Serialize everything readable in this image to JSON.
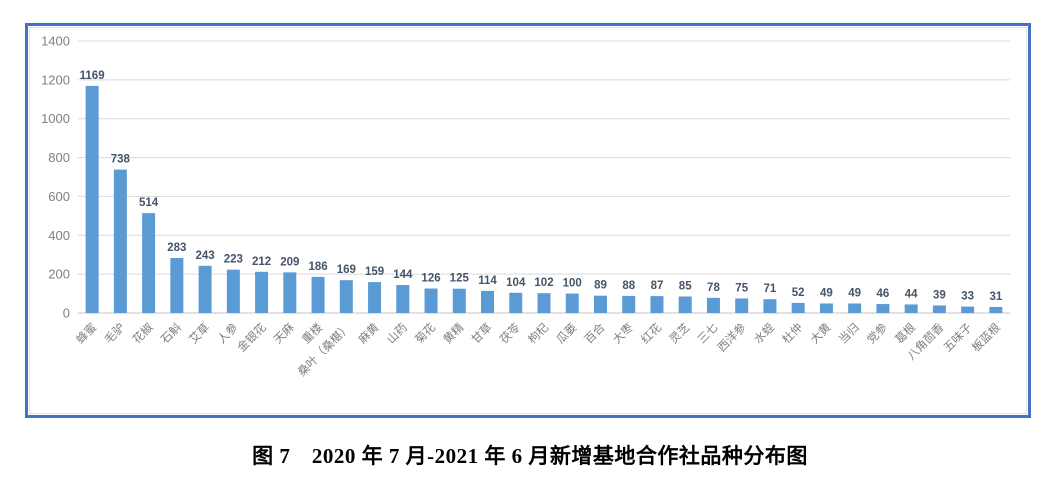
{
  "figure": {
    "caption": "图 7　2020 年 7 月-2021 年 6 月新增基地合作社品种分布图"
  },
  "chart_data": {
    "type": "bar",
    "title": "",
    "xlabel": "",
    "ylabel": "",
    "categories": [
      "蜂蜜",
      "毛驴",
      "花椒",
      "石斛",
      "艾草",
      "人参",
      "金银花",
      "天麻",
      "重楼",
      "桑叶（桑椹）",
      "麻黄",
      "山药",
      "菊花",
      "黄精",
      "甘草",
      "茯苓",
      "枸杞",
      "瓜蒌",
      "百合",
      "大枣",
      "红花",
      "灵芝",
      "三七",
      "西洋参",
      "水蛭",
      "杜仲",
      "大黄",
      "当归",
      "党参",
      "葛根",
      "八角茴香",
      "五味子",
      "板蓝根"
    ],
    "values": [
      1169,
      738,
      514,
      283,
      243,
      223,
      212,
      209,
      186,
      169,
      159,
      144,
      126,
      125,
      114,
      104,
      102,
      100,
      89,
      88,
      87,
      85,
      78,
      75,
      71,
      52,
      49,
      49,
      46,
      44,
      39,
      33,
      31
    ],
    "ylim": [
      0,
      1400
    ],
    "yticks": [
      0,
      200,
      400,
      600,
      800,
      1000,
      1200,
      1400
    ],
    "grid": true,
    "legend": false,
    "value_labels": true,
    "colors": {
      "bar": "#5B9BD5",
      "value_label": "#44546A",
      "tick_label": "#808080",
      "category_label": "#7f7f7f",
      "gridline": "#D9D9D9",
      "axis_line": "#C6C6C6",
      "frame_border": "#4472C4"
    }
  }
}
